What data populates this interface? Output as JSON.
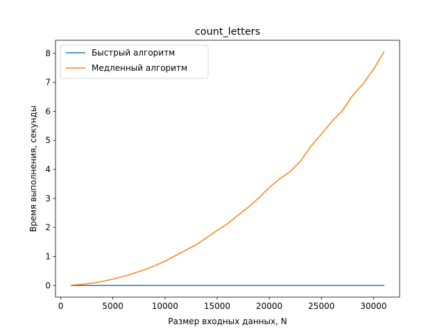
{
  "chart_data": {
    "type": "line",
    "title": "count_letters",
    "xlabel": "Размер входных данных, N",
    "ylabel": "Время выполнения, секунды",
    "xlim": [
      -500,
      32500
    ],
    "ylim": [
      -0.4,
      8.45
    ],
    "xticks": [
      0,
      5000,
      10000,
      15000,
      20000,
      25000,
      30000
    ],
    "yticks": [
      0,
      1,
      2,
      3,
      4,
      5,
      6,
      7,
      8
    ],
    "grid": false,
    "legend_position": "top-left",
    "series": [
      {
        "name": "Быстрый алгоритм",
        "color": "#1f77b4",
        "x": [
          1000,
          2000,
          3000,
          4000,
          5000,
          6000,
          7000,
          8000,
          9000,
          10000,
          11000,
          12000,
          13000,
          14000,
          15000,
          16000,
          17000,
          18000,
          19000,
          20000,
          21000,
          22000,
          23000,
          24000,
          25000,
          26000,
          27000,
          28000,
          29000,
          30000,
          31000
        ],
        "values": [
          0,
          0,
          0,
          0,
          0,
          0,
          0,
          0,
          0,
          0,
          0,
          0,
          0,
          0,
          0,
          0,
          0,
          0,
          0,
          0,
          0,
          0,
          0,
          0,
          0,
          0,
          0,
          0,
          0,
          0,
          0
        ]
      },
      {
        "name": "Медленный алгоритм",
        "color": "#ff7f0e",
        "x": [
          1000,
          2000,
          3000,
          4000,
          5000,
          6000,
          7000,
          8000,
          9000,
          10000,
          11000,
          12000,
          13000,
          14000,
          15000,
          16000,
          17000,
          18000,
          19000,
          20000,
          21000,
          22000,
          23000,
          24000,
          25000,
          26000,
          27000,
          28000,
          29000,
          30000,
          31000
        ],
        "values": [
          0.01,
          0.04,
          0.08,
          0.14,
          0.22,
          0.31,
          0.42,
          0.54,
          0.68,
          0.84,
          1.03,
          1.22,
          1.41,
          1.65,
          1.9,
          2.13,
          2.42,
          2.7,
          3.02,
          3.38,
          3.68,
          3.92,
          4.29,
          4.8,
          5.22,
          5.65,
          6.02,
          6.55,
          6.95,
          7.45,
          8.05
        ]
      }
    ]
  }
}
